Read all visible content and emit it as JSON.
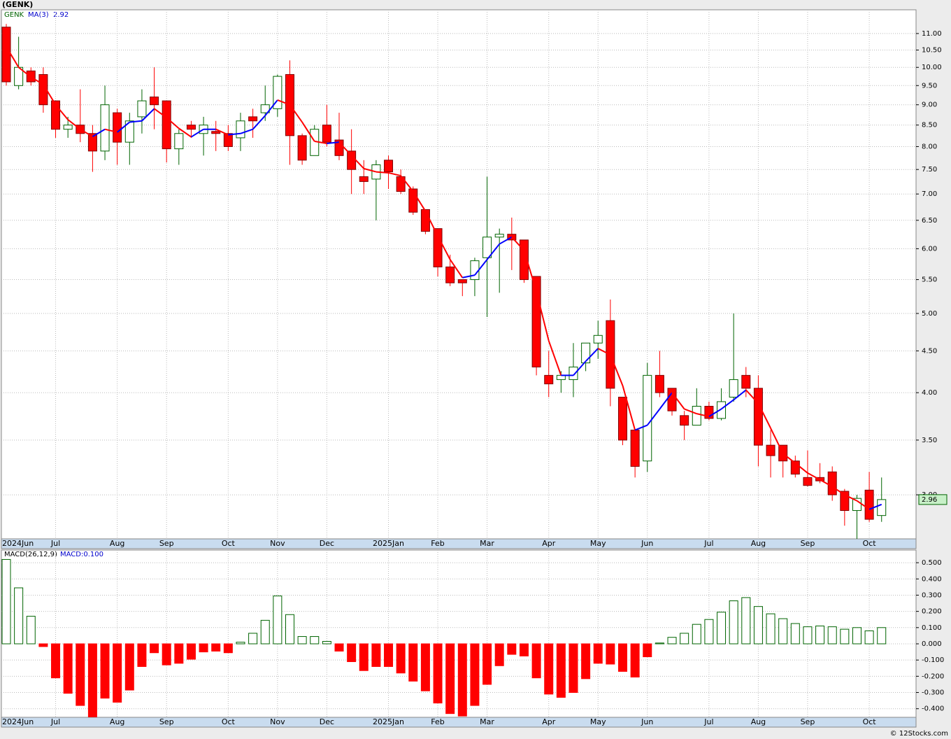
{
  "chart_data": [
    {
      "type": "candlestick",
      "title": "(GENK)",
      "symbol": "GENK",
      "log": true,
      "grid": true,
      "up_color": "#006400",
      "down_color": "#ff0000",
      "categories": [
        "2024Jun",
        null,
        null,
        null,
        "Jul",
        null,
        null,
        null,
        null,
        "Aug",
        null,
        null,
        null,
        "Sep",
        null,
        null,
        null,
        null,
        "Oct",
        null,
        null,
        null,
        "Nov",
        null,
        null,
        null,
        "Dec",
        null,
        null,
        null,
        null,
        "2025Jan",
        null,
        null,
        null,
        "Feb",
        null,
        null,
        null,
        "Mar",
        null,
        null,
        null,
        null,
        "Apr",
        null,
        null,
        null,
        "May",
        null,
        null,
        null,
        "Jun",
        null,
        null,
        null,
        null,
        "Jul",
        null,
        null,
        null,
        "Aug",
        null,
        null,
        null,
        "Sep",
        null,
        null,
        null,
        null,
        "Oct",
        null
      ],
      "open": [
        11.2,
        9.5,
        9.9,
        9.8,
        9.1,
        8.4,
        8.5,
        8.3,
        7.9,
        8.8,
        8.1,
        8.7,
        9.2,
        9.1,
        7.95,
        8.5,
        8.3,
        8.35,
        8.3,
        8.2,
        8.7,
        8.8,
        8.9,
        9.8,
        8.25,
        7.8,
        8.5,
        8.15,
        7.9,
        7.35,
        7.3,
        7.7,
        7.35,
        7.1,
        6.7,
        6.35,
        5.7,
        5.5,
        5.5,
        5.85,
        6.2,
        6.25,
        6.15,
        5.55,
        4.2,
        4.15,
        4.15,
        4.35,
        4.6,
        4.9,
        3.95,
        3.6,
        3.3,
        4.2,
        4.05,
        3.75,
        3.65,
        3.85,
        3.72,
        3.95,
        4.2,
        4.05,
        3.45,
        3.45,
        3.3,
        3.15,
        3.15,
        3.2,
        3.03,
        2.87,
        3.04,
        2.83
      ],
      "high": [
        11.3,
        10.9,
        10.0,
        10.0,
        9.1,
        8.7,
        9.4,
        8.5,
        9.5,
        8.9,
        8.8,
        9.4,
        10.0,
        9.1,
        8.4,
        8.6,
        8.7,
        8.6,
        8.5,
        8.8,
        8.9,
        9.5,
        9.8,
        10.2,
        8.3,
        8.5,
        9.0,
        8.8,
        8.4,
        7.7,
        7.7,
        7.8,
        7.5,
        7.15,
        6.7,
        6.35,
        5.9,
        5.5,
        5.85,
        7.35,
        6.35,
        6.55,
        6.15,
        5.55,
        4.5,
        4.25,
        4.6,
        4.6,
        4.9,
        5.2,
        3.95,
        3.6,
        4.35,
        4.5,
        4.05,
        3.8,
        4.05,
        3.9,
        4.05,
        5.0,
        4.3,
        4.2,
        3.6,
        3.45,
        3.35,
        3.4,
        3.28,
        3.25,
        3.05,
        3.0,
        3.2,
        3.15
      ],
      "low": [
        9.5,
        9.4,
        9.5,
        8.8,
        8.2,
        8.2,
        8.1,
        7.45,
        7.7,
        7.6,
        7.6,
        8.3,
        8.4,
        7.65,
        7.6,
        8.2,
        7.8,
        7.9,
        7.9,
        7.9,
        8.2,
        8.6,
        8.7,
        7.6,
        7.6,
        7.8,
        8.0,
        7.7,
        7.0,
        7.0,
        6.5,
        7.1,
        7.0,
        6.6,
        6.25,
        5.55,
        5.4,
        5.25,
        5.25,
        4.95,
        5.3,
        5.65,
        5.45,
        4.2,
        3.95,
        4.0,
        3.95,
        4.25,
        4.4,
        3.85,
        3.45,
        3.15,
        3.2,
        3.95,
        3.75,
        3.5,
        3.65,
        3.7,
        3.7,
        3.9,
        3.95,
        3.25,
        3.15,
        3.15,
        3.15,
        3.07,
        3.1,
        2.95,
        2.75,
        2.65,
        2.78,
        2.78
      ],
      "close": [
        9.6,
        10.0,
        9.6,
        9.0,
        8.4,
        8.5,
        8.3,
        7.9,
        9.0,
        8.1,
        8.6,
        9.1,
        9.0,
        7.95,
        8.3,
        8.4,
        8.5,
        8.3,
        8.0,
        8.6,
        8.6,
        9.0,
        9.75,
        8.25,
        7.7,
        8.4,
        8.1,
        7.8,
        7.5,
        7.25,
        7.6,
        7.45,
        7.05,
        6.65,
        6.3,
        5.7,
        5.45,
        5.45,
        5.8,
        6.2,
        6.25,
        6.15,
        5.5,
        4.3,
        4.1,
        4.2,
        4.3,
        4.6,
        4.7,
        4.05,
        3.5,
        3.25,
        4.2,
        4.0,
        3.8,
        3.65,
        3.85,
        3.72,
        3.9,
        4.15,
        4.05,
        3.45,
        3.35,
        3.3,
        3.18,
        3.08,
        3.12,
        3.0,
        2.87,
        2.97,
        2.8,
        2.96
      ],
      "ma": {
        "name": "MA(3)",
        "up_color": "#0000ff",
        "down_color": "#ff0000",
        "values": [
          10.6,
          10.0,
          9.73,
          9.53,
          9.0,
          8.63,
          8.4,
          8.23,
          8.4,
          8.33,
          8.57,
          8.6,
          8.9,
          8.68,
          8.42,
          8.22,
          8.4,
          8.4,
          8.27,
          8.3,
          8.4,
          8.73,
          9.12,
          9.0,
          8.57,
          8.12,
          8.07,
          8.1,
          7.8,
          7.52,
          7.45,
          7.43,
          7.37,
          7.05,
          6.67,
          6.22,
          5.82,
          5.53,
          5.57,
          5.82,
          6.08,
          6.2,
          5.97,
          5.32,
          4.63,
          4.2,
          4.2,
          4.37,
          4.53,
          4.45,
          4.08,
          3.6,
          3.65,
          3.82,
          4.0,
          3.82,
          3.77,
          3.74,
          3.82,
          3.92,
          4.03,
          3.88,
          3.62,
          3.37,
          3.28,
          3.19,
          3.13,
          3.07,
          3.0,
          2.95,
          2.88,
          2.92
        ]
      },
      "ylim": [
        2.65,
        11.76
      ],
      "yticks": [
        {
          "value": 3,
          "label": "3.00"
        },
        {
          "value": 3.5,
          "label": "3.50"
        },
        {
          "value": 4,
          "label": "4.00"
        },
        {
          "value": 4.5,
          "label": "4.50"
        },
        {
          "value": 5,
          "label": "5.00"
        },
        {
          "value": 5.5,
          "label": "5.50"
        },
        {
          "value": 6,
          "label": "6.00"
        },
        {
          "value": 6.5,
          "label": "6.50"
        },
        {
          "value": 7,
          "label": "7.00"
        },
        {
          "value": 7.5,
          "label": "7.50"
        },
        {
          "value": 8,
          "label": "8.00"
        },
        {
          "value": 8.5,
          "label": "8.50"
        },
        {
          "value": 9,
          "label": "9.00"
        },
        {
          "value": 9.5,
          "label": "9.50"
        },
        {
          "value": 10,
          "label": "10.00"
        },
        {
          "value": 10.5,
          "label": "10.50"
        },
        {
          "value": 11,
          "label": "11.00"
        }
      ]
    },
    {
      "type": "bar",
      "title": "MACD(26,12,9)",
      "legend": "MACD:0.100",
      "grid": true,
      "pos_color": "#006400",
      "neg_color": "#ff0000",
      "categories": [
        "2024Jun",
        null,
        null,
        null,
        "Jul",
        null,
        null,
        null,
        null,
        "Aug",
        null,
        null,
        null,
        "Sep",
        null,
        null,
        null,
        null,
        "Oct",
        null,
        null,
        null,
        "Nov",
        null,
        null,
        null,
        "Dec",
        null,
        null,
        null,
        null,
        "2025Jan",
        null,
        null,
        null,
        "Feb",
        null,
        null,
        null,
        "Mar",
        null,
        null,
        null,
        null,
        "Apr",
        null,
        null,
        null,
        "May",
        null,
        null,
        null,
        "Jun",
        null,
        null,
        null,
        null,
        "Jul",
        null,
        null,
        null,
        "Aug",
        null,
        null,
        null,
        "Sep",
        null,
        null,
        null,
        null,
        "Oct",
        null
      ],
      "values": [
        0.52,
        0.345,
        0.17,
        -0.017,
        -0.21,
        -0.305,
        -0.38,
        -0.45,
        -0.335,
        -0.36,
        -0.285,
        -0.14,
        -0.055,
        -0.13,
        -0.12,
        -0.095,
        -0.05,
        -0.045,
        -0.055,
        0.01,
        0.065,
        0.145,
        0.295,
        0.18,
        0.045,
        0.045,
        0.015,
        -0.045,
        -0.11,
        -0.165,
        -0.14,
        -0.14,
        -0.18,
        -0.23,
        -0.29,
        -0.365,
        -0.43,
        -0.445,
        -0.38,
        -0.25,
        -0.135,
        -0.065,
        -0.075,
        -0.21,
        -0.31,
        -0.33,
        -0.3,
        -0.215,
        -0.12,
        -0.125,
        -0.17,
        -0.205,
        -0.08,
        0.005,
        0.04,
        0.065,
        0.12,
        0.15,
        0.195,
        0.265,
        0.285,
        0.23,
        0.185,
        0.155,
        0.125,
        0.105,
        0.11,
        0.105,
        0.09,
        0.1,
        0.08,
        0.1
      ],
      "ylim": [
        -0.453,
        0.578
      ],
      "yticks": [
        {
          "value": 0.5,
          "label": "0.500"
        },
        {
          "value": 0.4,
          "label": "0.400"
        },
        {
          "value": 0.3,
          "label": "0.300"
        },
        {
          "value": 0.2,
          "label": "0.200"
        },
        {
          "value": 0.1,
          "label": "0.100"
        },
        {
          "value": 0,
          "label": "0.000"
        },
        {
          "value": -0.1,
          "label": "-0.100"
        },
        {
          "value": -0.2,
          "label": "-0.200"
        },
        {
          "value": -0.3,
          "label": "-0.300"
        },
        {
          "value": -0.4,
          "label": "-0.400"
        }
      ]
    }
  ],
  "footer": "© 12Stocks.com"
}
